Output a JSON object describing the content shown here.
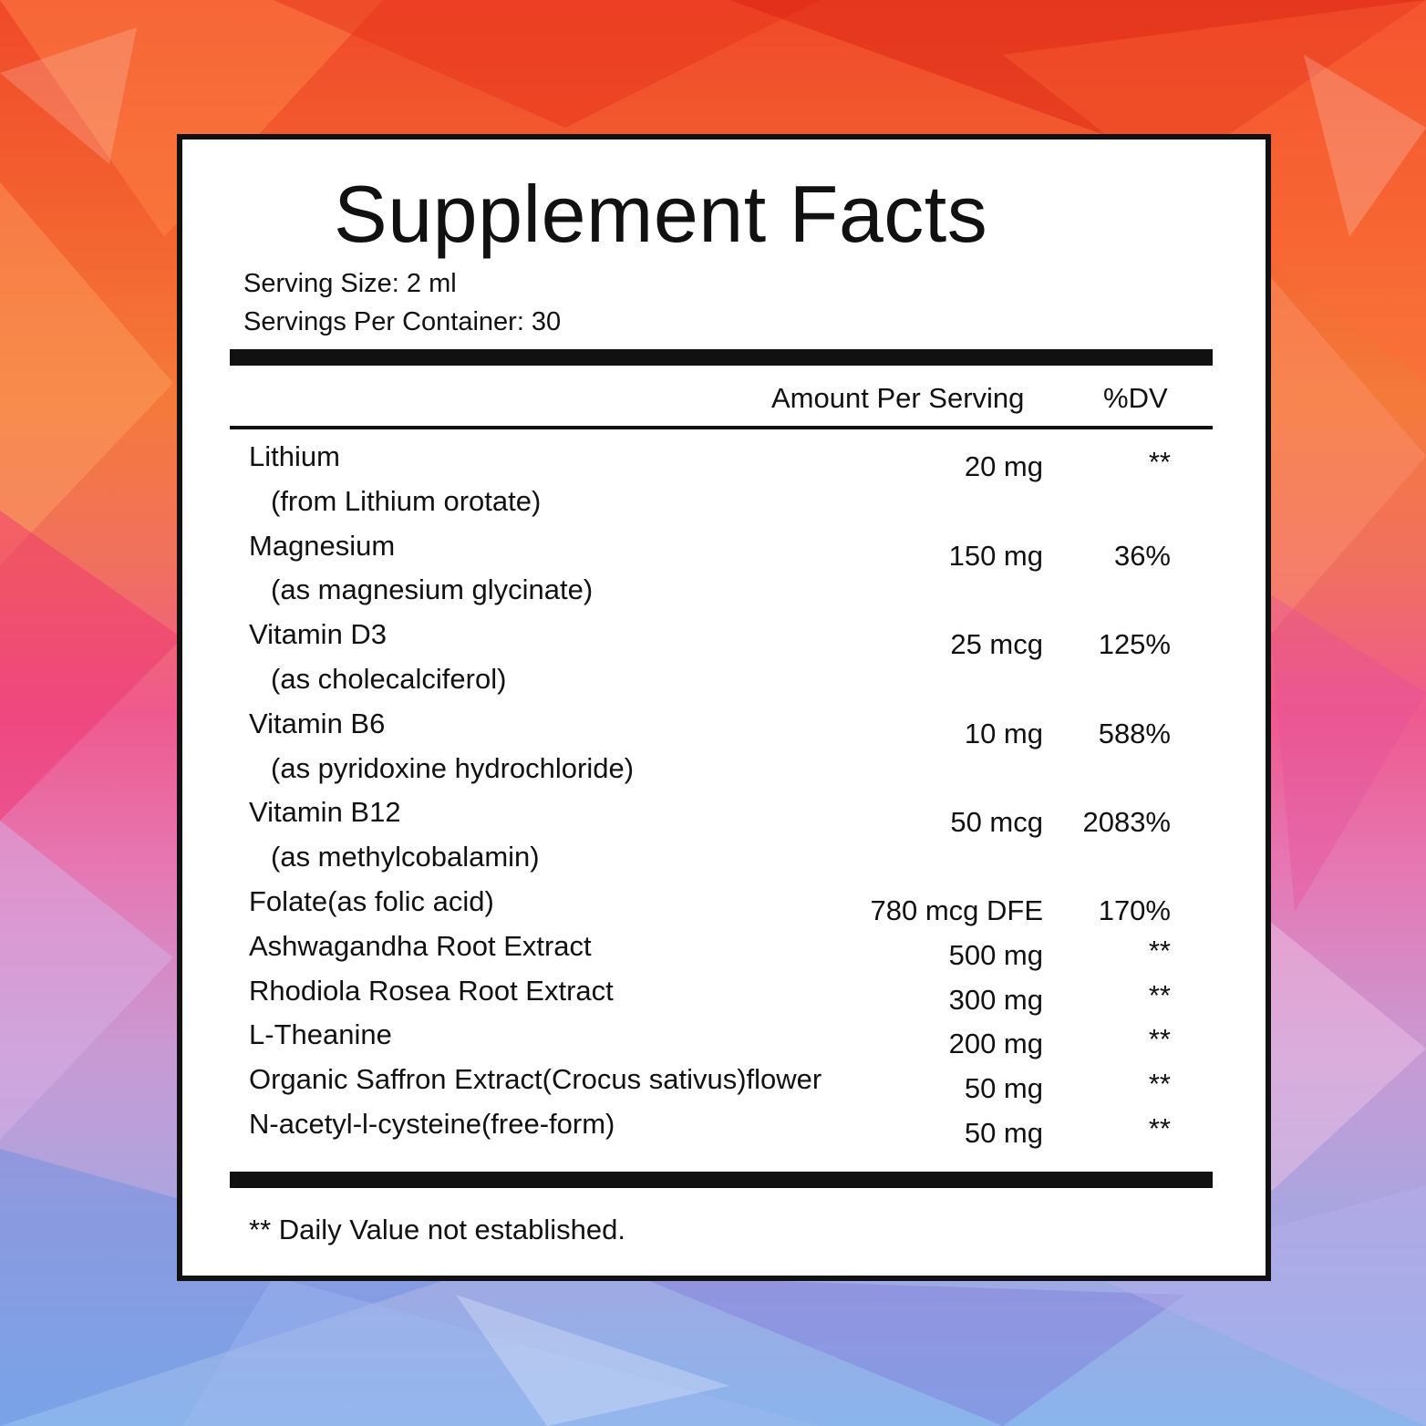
{
  "label": {
    "title": "Supplement Facts",
    "serving_size": "Serving Size: 2 ml",
    "servings_per_container": "Servings Per Container: 30",
    "col_amount": "Amount Per Serving",
    "col_dv": "%DV",
    "footnote": "** Daily Value not established."
  },
  "nutrients": [
    {
      "name": "Lithium",
      "sub": "(from Lithium orotate)",
      "amount": "20 mg",
      "dv": "**"
    },
    {
      "name": "Magnesium",
      "sub": "(as magnesium glycinate)",
      "amount": "150 mg",
      "dv": "36%"
    },
    {
      "name": "Vitamin D3",
      "sub": "(as cholecalciferol)",
      "amount": "25 mcg",
      "dv": "125%"
    },
    {
      "name": "Vitamin B6",
      "sub": "(as pyridoxine hydrochloride)",
      "amount": "10 mg",
      "dv": "588%"
    },
    {
      "name": "Vitamin B12",
      "sub": "(as methylcobalamin)",
      "amount": "50 mcg",
      "dv": "2083%"
    },
    {
      "name": "Folate(as folic acid)",
      "amount": "780 mcg DFE",
      "dv": "170%"
    },
    {
      "name": "Ashwagandha Root Extract",
      "amount": "500 mg",
      "dv": "**"
    },
    {
      "name": "Rhodiola Rosea Root Extract",
      "amount": "300 mg",
      "dv": "**"
    },
    {
      "name": "L-Theanine",
      "amount": "200 mg",
      "dv": "**"
    },
    {
      "name": "Organic Saffron Extract(Crocus sativus)flower",
      "amount": "50 mg",
      "dv": "**"
    },
    {
      "name": "N-acetyl-l-cysteine(free-form)",
      "amount": "50 mg",
      "dv": "**"
    }
  ],
  "colors": {
    "ink": "#111111",
    "panel": "#ffffff"
  }
}
